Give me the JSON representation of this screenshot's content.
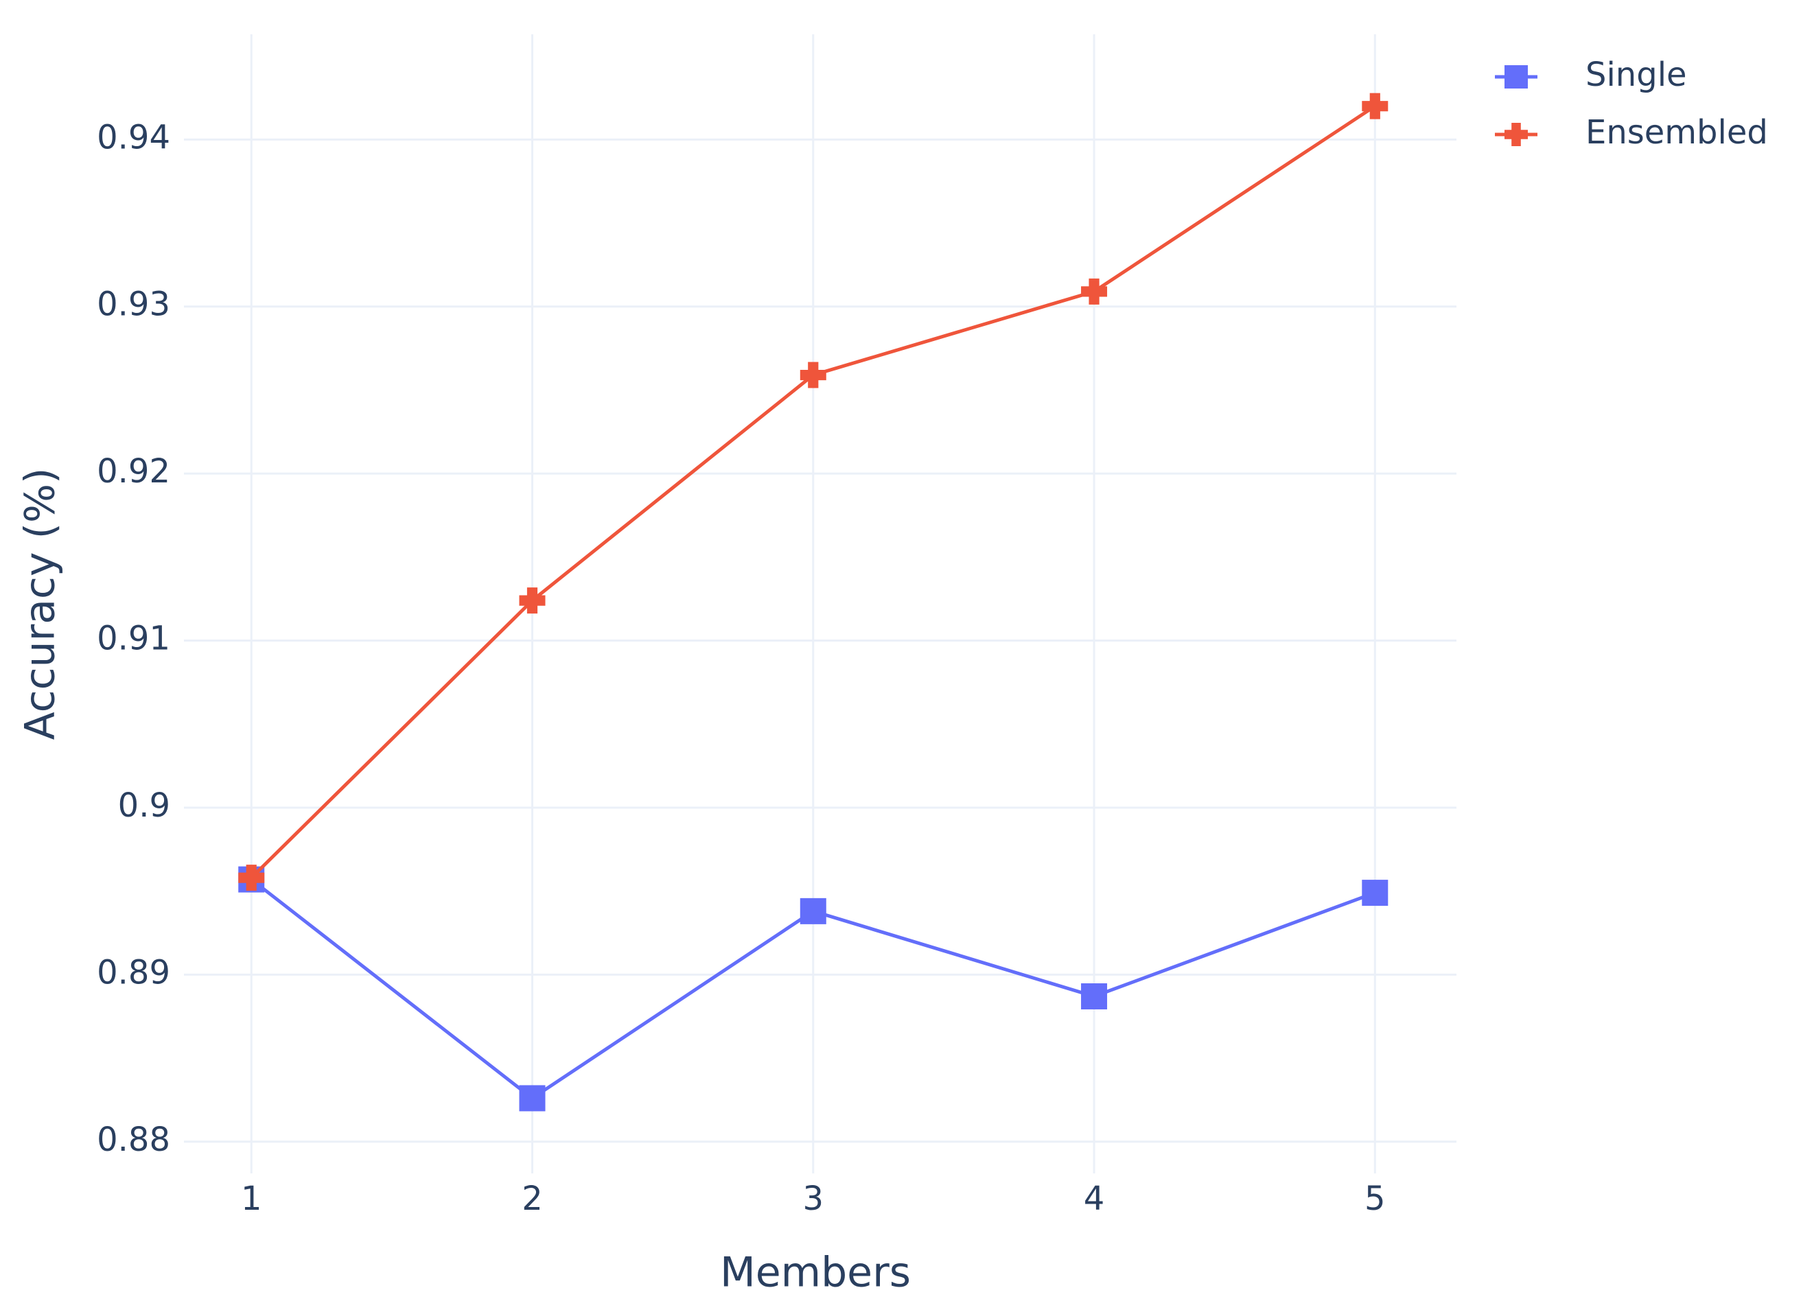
{
  "chart_data": {
    "type": "line",
    "x_label": "Members",
    "y_label": "Accuracy (%)",
    "x": [
      1,
      2,
      3,
      4,
      5
    ],
    "series": [
      {
        "name": "Single",
        "color": "#636efa",
        "marker": "square",
        "values": [
          0.8957,
          0.8826,
          0.8938,
          0.8887,
          0.8949
        ]
      },
      {
        "name": "Ensembled",
        "color": "#ef553b",
        "marker": "cross",
        "values": [
          0.8958,
          0.9124,
          0.9259,
          0.9309,
          0.942
        ]
      }
    ],
    "xlim": [
      0.76,
      5.29
    ],
    "xticks": [
      1,
      2,
      3,
      4,
      5
    ],
    "ylim": [
      0.8781,
      0.9463
    ],
    "yticks": [
      0.88,
      0.89,
      0.9,
      0.91,
      0.92,
      0.93,
      0.94
    ],
    "grid": true,
    "legend": "outside-top-right"
  }
}
